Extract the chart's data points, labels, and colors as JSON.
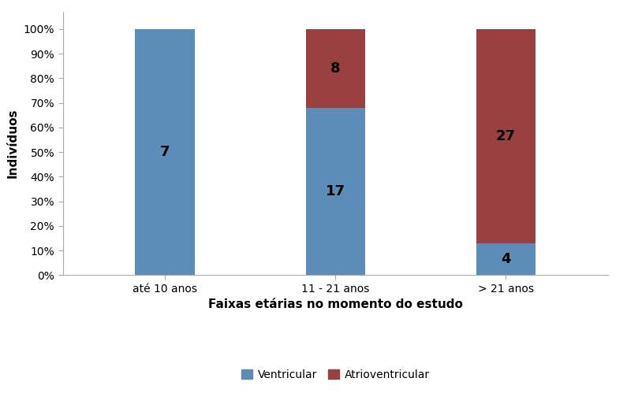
{
  "categories": [
    "até 10 anos",
    "11 - 21 anos",
    "> 21 anos"
  ],
  "ventricular_counts": [
    7,
    17,
    4
  ],
  "atrioventricular_counts": [
    0,
    8,
    27
  ],
  "ventricular_pct": [
    100.0,
    68.0,
    12.903
  ],
  "atrioventricular_pct": [
    0.0,
    32.0,
    87.097
  ],
  "ventricular_color": "#5B8DB8",
  "atrioventricular_color": "#9B4040",
  "ylabel": "Indivíduos",
  "xlabel": "Faixas etárias no momento do estudo",
  "yticks": [
    0,
    10,
    20,
    30,
    40,
    50,
    60,
    70,
    80,
    90,
    100
  ],
  "ytick_labels": [
    "0%",
    "10%",
    "20%",
    "30%",
    "40%",
    "50%",
    "60%",
    "70%",
    "80%",
    "90%",
    "100%"
  ],
  "legend_ventricular": "Ventricular",
  "legend_atrioventricular": "Atrioventricular",
  "bar_width": 0.35,
  "background_color": "#FFFFFF",
  "plot_bg_color": "#F2F2F2",
  "label_fontsize": 11,
  "tick_fontsize": 10,
  "annotation_fontsize": 13,
  "spine_color": "#AAAAAA"
}
